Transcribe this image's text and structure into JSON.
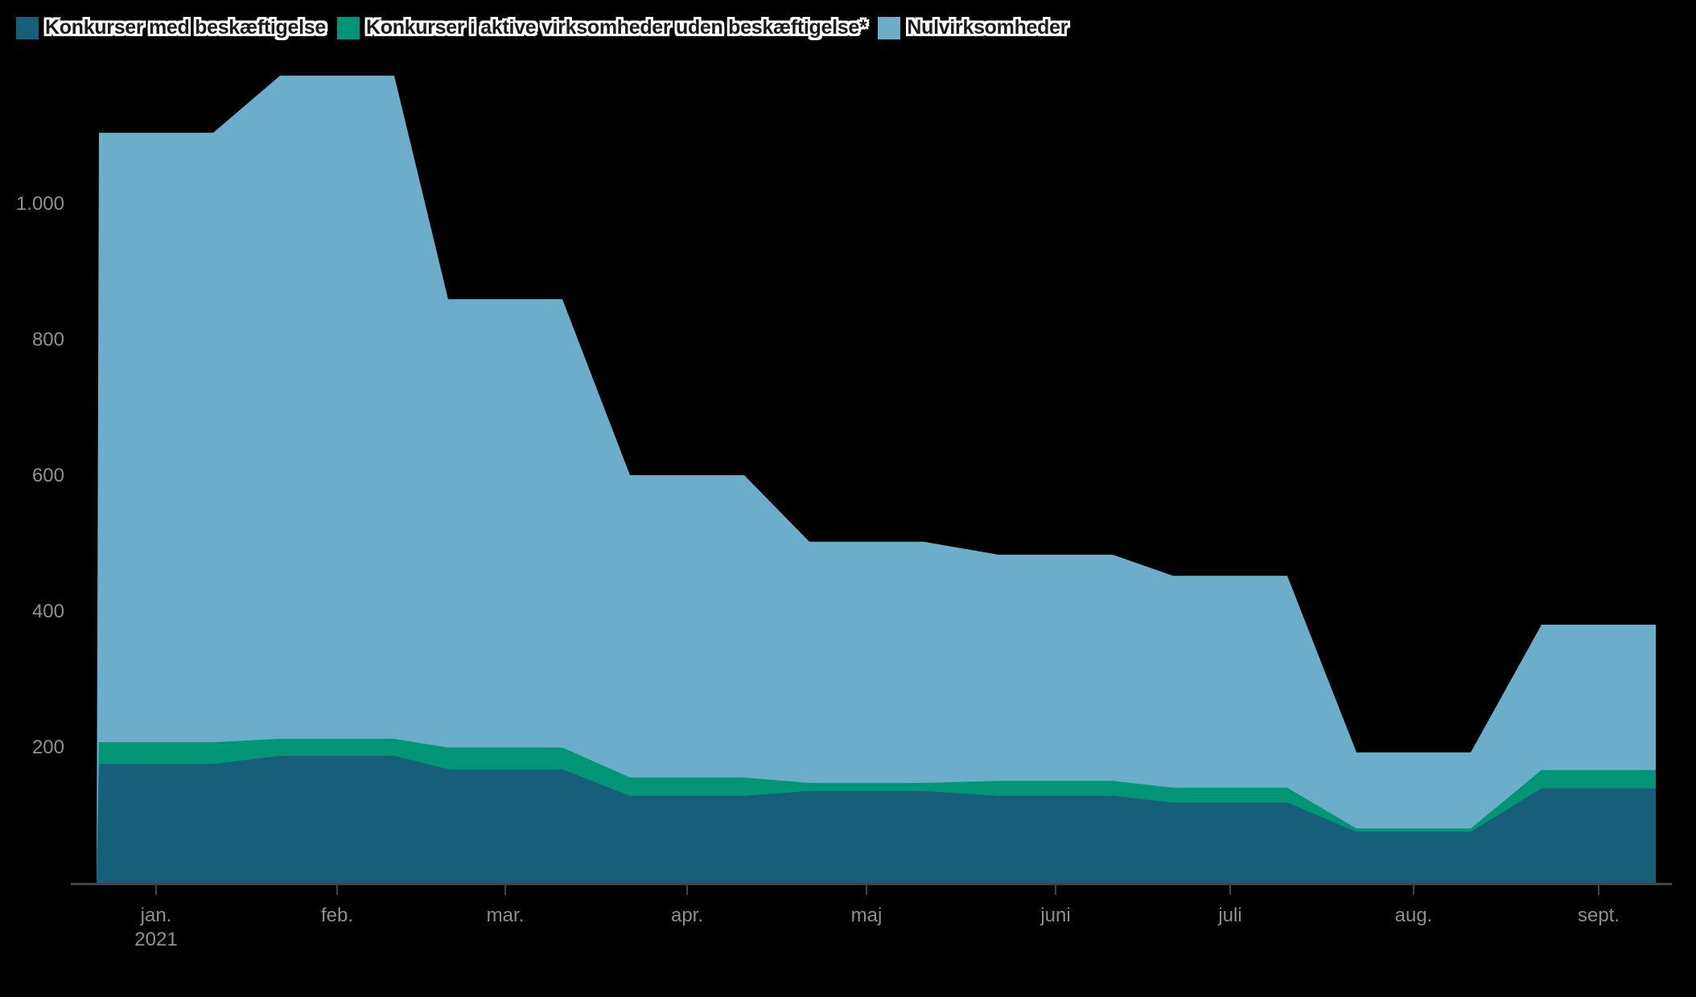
{
  "chart_data": {
    "type": "area",
    "stacking": "normal",
    "title": "",
    "grid": false,
    "legend_position": "top-left",
    "categories": [
      "jan.",
      "feb.",
      "mar.",
      "apr.",
      "maj",
      "juni",
      "juli",
      "aug.",
      "sept."
    ],
    "x_axis": {
      "year_label": "2021",
      "year_under_tick": "jan."
    },
    "y_axis": {
      "min": 0,
      "max": 1200,
      "ticks": [
        {
          "label": "200",
          "value": 200
        },
        {
          "label": "400",
          "value": 400
        },
        {
          "label": "600",
          "value": 600
        },
        {
          "label": "800",
          "value": 800
        },
        {
          "label": "1.000",
          "value": 1000
        }
      ]
    },
    "series": [
      {
        "id": "konkurser-med-beskaeftigelse",
        "name": "Konkurser med beskæftigelse",
        "color": "#175e78",
        "values": [
          175,
          187,
          167,
          128,
          135,
          128,
          118,
          75,
          139
        ]
      },
      {
        "id": "konkurser-aktive-uden-beskaeftigelse",
        "name": "Konkurser i aktive virksomheder uden beskæftigelse*",
        "color": "#009577",
        "values": [
          32,
          25,
          32,
          27,
          12,
          22,
          22,
          5,
          27
        ]
      },
      {
        "id": "nulvirksomheder",
        "name": "Nulvirksomheder",
        "color": "#6cadca",
        "values": [
          897,
          976,
          660,
          445,
          355,
          333,
          312,
          112,
          214
        ]
      }
    ],
    "stacked_totals": [
      1104,
      1188,
      859,
      600,
      502,
      483,
      452,
      192,
      380
    ]
  },
  "colors": {
    "background": "#000000",
    "axis_line": "#434343",
    "axis_text": "#8f8f8f",
    "legend_text": "#1a1a1a",
    "legend_halo": "#ffffff"
  }
}
